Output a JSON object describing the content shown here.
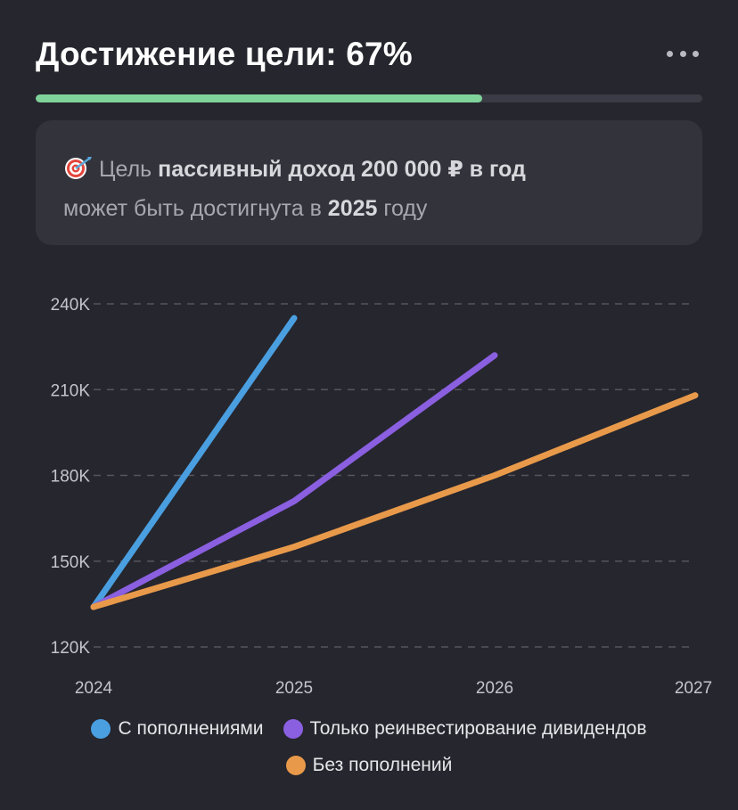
{
  "header": {
    "title": "Достижение цели: 67%",
    "more_icon": "more-horizontal-icon"
  },
  "progress": {
    "value": 0.67,
    "color": "#7fd39a"
  },
  "goal": {
    "icon": "target-dart-icon",
    "prefix": "Цель",
    "goal_name": "пассивный доход 200 000 ₽ в год",
    "middle": "может быть достигнута в",
    "year": "2025",
    "suffix": "году"
  },
  "chart_data": {
    "type": "line",
    "x": [
      "2024",
      "2025",
      "2026",
      "2027"
    ],
    "ylim": [
      120000,
      240000
    ],
    "yticks": [
      120000,
      150000,
      180000,
      210000,
      240000
    ],
    "ytick_labels": [
      "120K",
      "150K",
      "180K",
      "210K",
      "240K"
    ],
    "grid": true,
    "legend_position": "bottom",
    "series": [
      {
        "name": "С пополнениями",
        "color": "#4a9fe0",
        "values": [
          134000,
          235000,
          null,
          null
        ]
      },
      {
        "name": "Только реинвестирование дивидендов",
        "color": "#8a5fe0",
        "values": [
          134000,
          171000,
          222000,
          null
        ]
      },
      {
        "name": "Без пополнений",
        "color": "#e89a4a",
        "values": [
          134000,
          155000,
          180000,
          208000
        ]
      }
    ]
  }
}
